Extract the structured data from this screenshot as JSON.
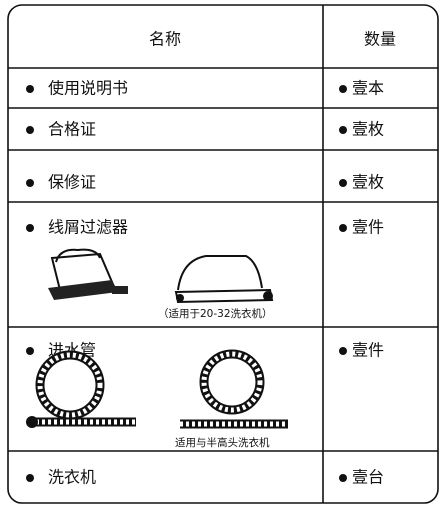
{
  "table": {
    "header": [
      "名称",
      "数量"
    ],
    "rows": [
      [
        "使用说明书",
        "壹本"
      ],
      [
        "合格证",
        "壹枚"
      ],
      [
        "保修证",
        "壹枚"
      ],
      [
        "线屑过滤器",
        "壹件"
      ],
      [
        "进水管",
        "壹件"
      ],
      [
        "洗衣机",
        "壹台"
      ]
    ],
    "captions": {
      "filter": "（适用于20-32洗衣机）",
      "hose": "适用与半高头洗衣机"
    }
  }
}
